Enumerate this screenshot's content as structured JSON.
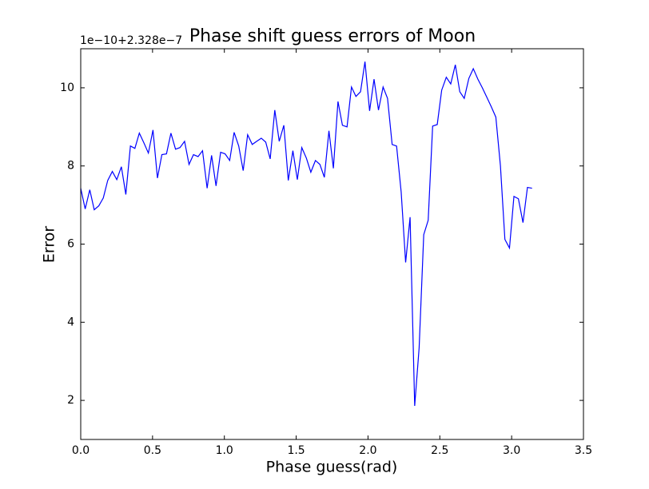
{
  "chart_data": {
    "type": "line",
    "title": "Phase shift guess errors of Moon",
    "xlabel": "Phase guess(rad)",
    "ylabel": "Error",
    "offset_text": "1e−10+2.328e−7",
    "xlim": [
      0,
      3.5
    ],
    "ylim": [
      1,
      11
    ],
    "xticks": [
      {
        "value": 0,
        "label": "0.0"
      },
      {
        "value": 0.5,
        "label": "0.5"
      },
      {
        "value": 1,
        "label": "1.0"
      },
      {
        "value": 1.5,
        "label": "1.5"
      },
      {
        "value": 2,
        "label": "2.0"
      },
      {
        "value": 2.5,
        "label": "2.5"
      },
      {
        "value": 3,
        "label": "3.0"
      },
      {
        "value": 3.5,
        "label": "3.5"
      }
    ],
    "yticks": [
      2,
      4,
      6,
      8,
      10
    ],
    "x": [
      0,
      0.031,
      0.063,
      0.094,
      0.126,
      0.157,
      0.188,
      0.22,
      0.251,
      0.283,
      0.314,
      0.346,
      0.377,
      0.408,
      0.44,
      0.471,
      0.503,
      0.534,
      0.565,
      0.597,
      0.628,
      0.66,
      0.691,
      0.723,
      0.754,
      0.785,
      0.817,
      0.848,
      0.88,
      0.911,
      0.942,
      0.974,
      1.005,
      1.037,
      1.068,
      1.1,
      1.131,
      1.162,
      1.194,
      1.225,
      1.257,
      1.288,
      1.319,
      1.351,
      1.382,
      1.414,
      1.445,
      1.477,
      1.508,
      1.539,
      1.571,
      1.602,
      1.634,
      1.665,
      1.696,
      1.728,
      1.759,
      1.791,
      1.822,
      1.854,
      1.885,
      1.916,
      1.948,
      1.979,
      2.011,
      2.042,
      2.073,
      2.105,
      2.136,
      2.168,
      2.199,
      2.231,
      2.262,
      2.293,
      2.325,
      2.356,
      2.388,
      2.419,
      2.45,
      2.482,
      2.513,
      2.545,
      2.576,
      2.608,
      2.639,
      2.67,
      2.702,
      2.733,
      2.765,
      2.796,
      2.827,
      2.859,
      2.89,
      2.922,
      2.953,
      2.985,
      3.016,
      3.047,
      3.079,
      3.11,
      3.142
    ],
    "series": [
      {
        "color": "#0000ff",
        "values": [
          7.43,
          6.9,
          7.39,
          6.88,
          6.98,
          7.18,
          7.63,
          7.86,
          7.65,
          7.98,
          7.27,
          8.51,
          8.45,
          8.84,
          8.59,
          8.33,
          8.92,
          7.69,
          8.29,
          8.31,
          8.84,
          8.43,
          8.47,
          8.63,
          8.04,
          8.29,
          8.24,
          8.39,
          7.43,
          8.27,
          7.49,
          8.35,
          8.31,
          8.14,
          8.86,
          8.51,
          7.88,
          8.8,
          8.55,
          8.63,
          8.71,
          8.61,
          8.18,
          9.43,
          8.63,
          9.04,
          7.63,
          8.39,
          7.65,
          8.47,
          8.2,
          7.84,
          8.14,
          8.04,
          7.71,
          8.9,
          7.94,
          9.65,
          9.04,
          9.0,
          10.02,
          9.78,
          9.9,
          10.67,
          9.41,
          10.22,
          9.43,
          10.02,
          9.73,
          8.55,
          8.51,
          7.33,
          5.53,
          6.69,
          1.86,
          3.35,
          6.24,
          6.61,
          9.02,
          9.06,
          9.94,
          10.27,
          10.1,
          10.59,
          9.9,
          9.73,
          10.24,
          10.49,
          10.22,
          10.0,
          9.76,
          9.51,
          9.25,
          8.0,
          6.12,
          5.9,
          7.22,
          7.16,
          6.55,
          7.45,
          7.43
        ]
      }
    ]
  }
}
